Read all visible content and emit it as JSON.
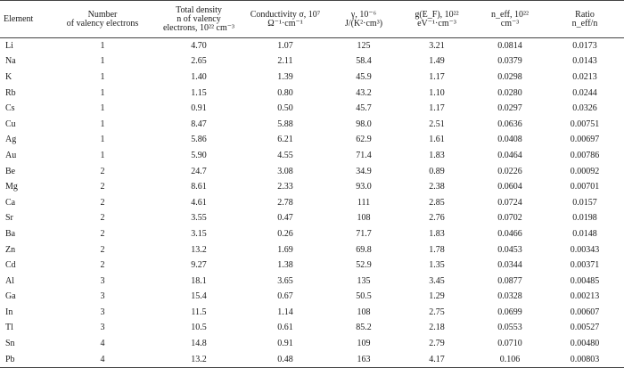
{
  "headers": [
    [
      "Element"
    ],
    [
      "Number",
      "of valency electrons"
    ],
    [
      "Total density",
      "n of valency",
      "electrons, 10²² cm⁻³"
    ],
    [
      "Conductivity σ, 10⁷",
      "Ω⁻¹·cm⁻¹"
    ],
    [
      "γ, 10⁻⁶",
      "J/(K²·cm³)"
    ],
    [
      "g(E_F), 10²²",
      "eV⁻¹·cm⁻³"
    ],
    [
      "n_eff, 10²²",
      "cm⁻³"
    ],
    [
      "Ratio",
      "n_eff/n"
    ]
  ],
  "rows": [
    [
      "Li",
      "1",
      "4.70",
      "1.07",
      "125",
      "3.21",
      "0.0814",
      "0.0173"
    ],
    [
      "Na",
      "1",
      "2.65",
      "2.11",
      "58.4",
      "1.49",
      "0.0379",
      "0.0143"
    ],
    [
      "K",
      "1",
      "1.40",
      "1.39",
      "45.9",
      "1.17",
      "0.0298",
      "0.0213"
    ],
    [
      "Rb",
      "1",
      "1.15",
      "0.80",
      "43.2",
      "1.10",
      "0.0280",
      "0.0244"
    ],
    [
      "Cs",
      "1",
      "0.91",
      "0.50",
      "45.7",
      "1.17",
      "0.0297",
      "0.0326"
    ],
    [
      "Cu",
      "1",
      "8.47",
      "5.88",
      "98.0",
      "2.51",
      "0.0636",
      "0.00751"
    ],
    [
      "Ag",
      "1",
      "5.86",
      "6.21",
      "62.9",
      "1.61",
      "0.0408",
      "0.00697"
    ],
    [
      "Au",
      "1",
      "5.90",
      "4.55",
      "71.4",
      "1.83",
      "0.0464",
      "0.00786"
    ],
    [
      "Be",
      "2",
      "24.7",
      "3.08",
      "34.9",
      "0.89",
      "0.0226",
      "0.00092"
    ],
    [
      "Mg",
      "2",
      "8.61",
      "2.33",
      "93.0",
      "2.38",
      "0.0604",
      "0.00701"
    ],
    [
      "Ca",
      "2",
      "4.61",
      "2.78",
      "111",
      "2.85",
      "0.0724",
      "0.0157"
    ],
    [
      "Sr",
      "2",
      "3.55",
      "0.47",
      "108",
      "2.76",
      "0.0702",
      "0.0198"
    ],
    [
      "Ba",
      "2",
      "3.15",
      "0.26",
      "71.7",
      "1.83",
      "0.0466",
      "0.0148"
    ],
    [
      "Zn",
      "2",
      "13.2",
      "1.69",
      "69.8",
      "1.78",
      "0.0453",
      "0.00343"
    ],
    [
      "Cd",
      "2",
      "9.27",
      "1.38",
      "52.9",
      "1.35",
      "0.0344",
      "0.00371"
    ],
    [
      "Al",
      "3",
      "18.1",
      "3.65",
      "135",
      "3.45",
      "0.0877",
      "0.00485"
    ],
    [
      "Ga",
      "3",
      "15.4",
      "0.67",
      "50.5",
      "1.29",
      "0.0328",
      "0.00213"
    ],
    [
      "In",
      "3",
      "11.5",
      "1.14",
      "108",
      "2.75",
      "0.0699",
      "0.00607"
    ],
    [
      "Tl",
      "3",
      "10.5",
      "0.61",
      "85.2",
      "2.18",
      "0.0553",
      "0.00527"
    ],
    [
      "Sn",
      "4",
      "14.8",
      "0.91",
      "109",
      "2.79",
      "0.0710",
      "0.00480"
    ],
    [
      "Pb",
      "4",
      "13.2",
      "0.48",
      "163",
      "4.17",
      "0.106",
      "0.00803"
    ]
  ]
}
